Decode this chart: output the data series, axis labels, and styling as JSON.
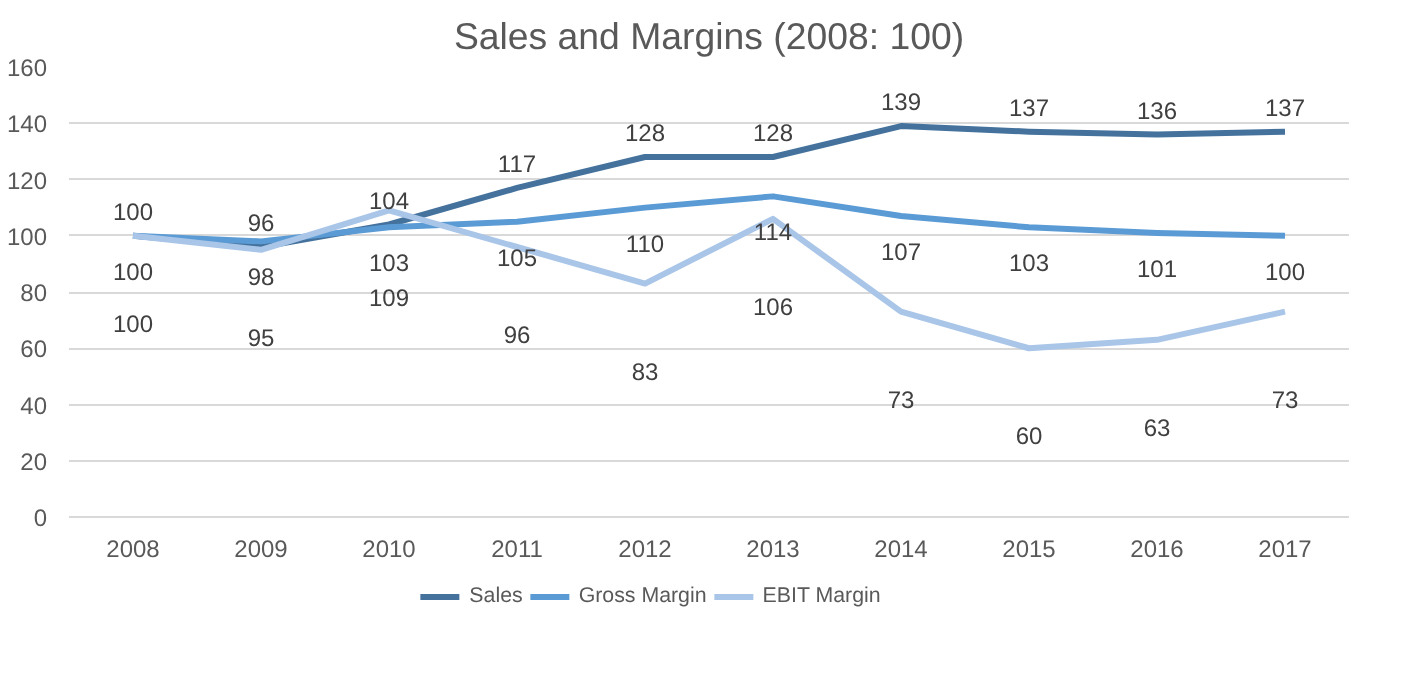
{
  "chart_data": {
    "type": "line",
    "title": "Sales and Margins (2008: 100)",
    "categories": [
      "2008",
      "2009",
      "2010",
      "2011",
      "2012",
      "2013",
      "2014",
      "2015",
      "2016",
      "2017"
    ],
    "series": [
      {
        "name": "Sales",
        "color": "#44729d",
        "values": [
          100,
          96,
          104,
          117,
          128,
          128,
          139,
          137,
          136,
          137
        ]
      },
      {
        "name": "Gross Margin",
        "color": "#5b9bd5",
        "values": [
          100,
          98,
          103,
          105,
          110,
          114,
          107,
          103,
          101,
          100
        ]
      },
      {
        "name": "EBIT Margin",
        "color": "#a9c5e8",
        "values": [
          100,
          95,
          109,
          96,
          83,
          106,
          73,
          60,
          63,
          73
        ]
      }
    ],
    "ylim": [
      0,
      160
    ],
    "yticks": [
      0,
      20,
      40,
      60,
      80,
      100,
      120,
      140,
      160
    ],
    "grid": "y",
    "legend": "bottom",
    "data_labels": true,
    "marker": "none",
    "line_style": "solid"
  }
}
